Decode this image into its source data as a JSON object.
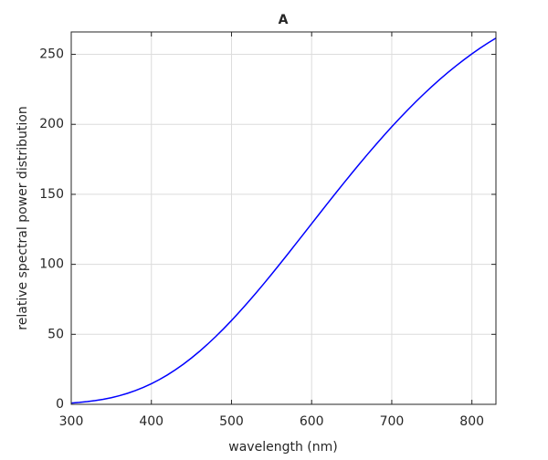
{
  "chart_data": {
    "type": "line",
    "title": "A",
    "x_label": "wavelength (nm)",
    "y_label": "relative spectral power distribution",
    "x": [
      300,
      310,
      320,
      330,
      340,
      350,
      360,
      370,
      380,
      390,
      400,
      410,
      420,
      430,
      440,
      450,
      460,
      470,
      480,
      490,
      500,
      510,
      520,
      530,
      540,
      550,
      560,
      570,
      580,
      590,
      600,
      610,
      620,
      630,
      640,
      650,
      660,
      670,
      680,
      690,
      700,
      710,
      720,
      730,
      740,
      750,
      760,
      770,
      780,
      790,
      800,
      810,
      820,
      830
    ],
    "series": [
      {
        "color": "#0000ff",
        "values": [
          0.93,
          1.36,
          1.93,
          2.66,
          3.59,
          4.74,
          6.14,
          7.82,
          9.8,
          12.09,
          14.71,
          17.68,
          20.99,
          24.67,
          28.7,
          33.09,
          37.81,
          42.87,
          48.24,
          53.91,
          59.86,
          66.06,
          72.5,
          79.13,
          85.95,
          92.91,
          100.0,
          107.18,
          114.44,
          121.73,
          129.04,
          136.35,
          143.62,
          150.84,
          157.98,
          165.03,
          171.96,
          178.77,
          185.43,
          191.93,
          198.26,
          204.41,
          210.36,
          216.12,
          221.67,
          227.0,
          232.12,
          237.01,
          241.68,
          246.12,
          250.33,
          254.31,
          258.07,
          261.6
        ]
      }
    ],
    "xlim": [
      300,
      830
    ],
    "ylim": [
      0,
      266
    ],
    "xticks": [
      300,
      400,
      500,
      600,
      700,
      800
    ],
    "yticks": [
      0,
      50,
      100,
      150,
      200,
      250
    ],
    "grid": true
  }
}
